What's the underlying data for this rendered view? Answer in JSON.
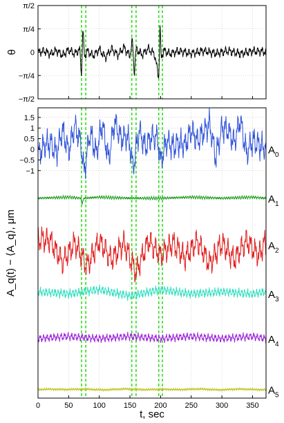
{
  "chart_data": [
    {
      "type": "line",
      "panel": "top",
      "ylabel": "θ",
      "xlim": [
        0,
        372
      ],
      "ylim": [
        -1.5708,
        1.5708
      ],
      "ytick_values": [
        -1.5708,
        -0.7854,
        0,
        0.7854,
        1.5708
      ],
      "ytick_labels": [
        "−π/2",
        "−π/4",
        "0",
        "π/4",
        "π/2"
      ],
      "xtick_values": [
        0,
        50,
        100,
        150,
        200,
        250,
        300,
        350
      ],
      "grid": true,
      "series": [
        {
          "color": "#000000",
          "x": [
            0,
            10,
            20,
            30,
            40,
            50,
            60,
            68,
            71,
            73,
            76,
            80,
            90,
            100,
            110,
            120,
            130,
            140,
            150,
            154,
            157,
            160,
            170,
            180,
            190,
            197,
            199,
            201,
            205,
            215,
            230,
            250,
            270,
            290,
            310,
            330,
            350,
            370
          ],
          "y": [
            0,
            0.04,
            -0.06,
            0.06,
            -0.1,
            0.08,
            -0.05,
            0.1,
            -0.78,
            0.78,
            -0.15,
            0.05,
            -0.12,
            0.1,
            -0.18,
            0.12,
            -0.1,
            0.16,
            -0.12,
            0.4,
            -0.7,
            0.1,
            -0.08,
            0.12,
            -0.06,
            -0.85,
            0.9,
            -0.2,
            0.06,
            -0.05,
            0.04,
            -0.04,
            0.05,
            -0.04,
            0.05,
            -0.05,
            0.04,
            0.02
          ]
        }
      ],
      "vlines": [
        71,
        78,
        153,
        160,
        197,
        203
      ],
      "vline_color": "#33dd22"
    },
    {
      "type": "line",
      "panel": "bottom",
      "ylabel": "A_q(t) − ⟨A_q⟩, μm",
      "xlabel": "t, sec",
      "xlim": [
        0,
        372
      ],
      "ylim": [
        -11.7,
        1.95
      ],
      "ytick_values": [
        1.5,
        1,
        0.5,
        0,
        -0.5,
        -1
      ],
      "ytick_labels": [
        "1.5",
        "1",
        "0.5",
        "0",
        "−0.5",
        "−1"
      ],
      "xtick_values": [
        0,
        50,
        100,
        150,
        200,
        250,
        300,
        350
      ],
      "xtick_labels": [
        "0",
        "50",
        "100",
        "150",
        "200",
        "250",
        "300",
        "350"
      ],
      "grid": true,
      "vlines": [
        71,
        78,
        153,
        160,
        197,
        203
      ],
      "vline_color": "#33dd22",
      "series": [
        {
          "name": "A0",
          "color": "#2b4fd8",
          "offset": 0,
          "amplitude": 0.75,
          "x": [
            0,
            10,
            20,
            30,
            40,
            50,
            60,
            70,
            75,
            85,
            95,
            105,
            115,
            125,
            135,
            145,
            150,
            155,
            165,
            175,
            185,
            195,
            200,
            210,
            220,
            230,
            240,
            250,
            260,
            270,
            280,
            290,
            300,
            310,
            320,
            330,
            340,
            350,
            360,
            370
          ],
          "y": [
            -0.3,
            0.2,
            0.3,
            -0.2,
            0.9,
            -0.1,
            1.1,
            0.3,
            -1.1,
            0.8,
            -0.2,
            1.2,
            -0.5,
            1.3,
            0.5,
            0.6,
            0.2,
            -0.9,
            0.9,
            0.1,
            0.6,
            0.5,
            -0.6,
            0.4,
            0.1,
            0.3,
            0.2,
            0.9,
            0.4,
            0.8,
            1.2,
            -0.4,
            1.0,
            0.9,
            0.3,
            1.4,
            -0.2,
            0.4,
            0.2,
            0.1
          ]
        },
        {
          "name": "A1",
          "color": "#1a9a1a",
          "offset": -2.3,
          "amplitude": 0.08,
          "x": [
            0,
            50,
            70,
            72,
            75,
            100,
            150,
            200,
            250,
            300,
            350,
            370
          ],
          "y": [
            -2.3,
            -2.25,
            -2.3,
            -2.55,
            -2.3,
            -2.25,
            -2.3,
            -2.3,
            -2.25,
            -2.3,
            -2.25,
            -2.3
          ]
        },
        {
          "name": "A2",
          "color": "#e01818",
          "offset": -4.5,
          "amplitude": 0.7,
          "x": [
            0,
            20,
            40,
            60,
            80,
            100,
            120,
            140,
            160,
            180,
            200,
            220,
            240,
            260,
            280,
            300,
            320,
            340,
            360,
            370
          ],
          "y": [
            -4.2,
            -4.3,
            -5.3,
            -4.4,
            -5.5,
            -4.3,
            -5.2,
            -4.4,
            -5.8,
            -4.3,
            -5.0,
            -4.4,
            -5.1,
            -4.3,
            -5.4,
            -4.4,
            -5.2,
            -4.3,
            -5.0,
            -4.4
          ]
        },
        {
          "name": "A3",
          "color": "#33dfc0",
          "offset": -6.8,
          "amplitude": 0.25,
          "x": [
            0,
            50,
            100,
            150,
            200,
            250,
            300,
            350,
            370
          ],
          "y": [
            -6.7,
            -6.8,
            -6.6,
            -6.9,
            -6.6,
            -6.8,
            -6.7,
            -6.8,
            -6.7
          ]
        },
        {
          "name": "A4",
          "color": "#9a22d8",
          "offset": -8.9,
          "amplitude": 0.22,
          "x": [
            0,
            50,
            100,
            150,
            200,
            250,
            300,
            350,
            370
          ],
          "y": [
            -8.9,
            -8.8,
            -8.9,
            -8.8,
            -8.9,
            -8.8,
            -8.9,
            -8.8,
            -8.9
          ]
        },
        {
          "name": "A5",
          "color": "#b8c010",
          "offset": -11.3,
          "amplitude": 0.06,
          "x": [
            0,
            50,
            100,
            150,
            200,
            250,
            300,
            350,
            370
          ],
          "y": [
            -11.3,
            -11.28,
            -11.3,
            -11.28,
            -11.3,
            -11.28,
            -11.3,
            -11.28,
            -11.3
          ]
        }
      ],
      "row_labels": [
        {
          "base": "A",
          "sub": "0"
        },
        {
          "base": "A",
          "sub": "1"
        },
        {
          "base": "A",
          "sub": "2"
        },
        {
          "base": "A",
          "sub": "3"
        },
        {
          "base": "A",
          "sub": "4"
        },
        {
          "base": "A",
          "sub": "5"
        }
      ]
    }
  ]
}
